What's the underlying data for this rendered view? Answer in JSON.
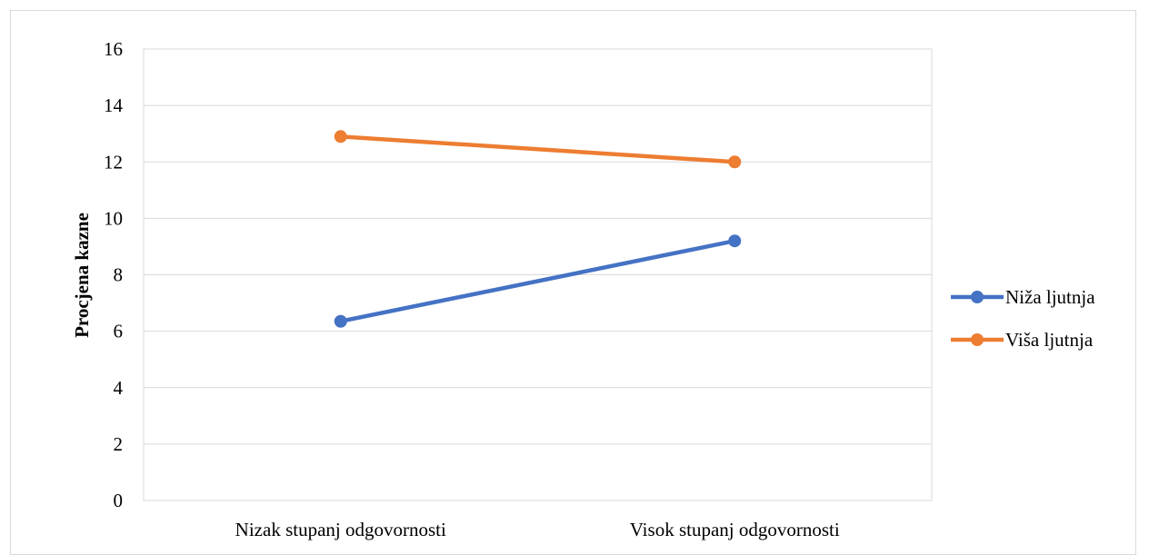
{
  "chart_data": {
    "type": "line",
    "categories": [
      "Nizak stupanj odgovornosti",
      "Visok stupanj odgovornosti"
    ],
    "series": [
      {
        "name": "Niža ljutnja",
        "values": [
          6.35,
          9.2
        ],
        "color": "#4472C4"
      },
      {
        "name": "Viša ljutnja",
        "values": [
          12.9,
          12.0
        ],
        "color": "#ED7D31"
      }
    ],
    "title": "",
    "xlabel": "",
    "ylabel": "Procjena kazne",
    "ylim": [
      0,
      16
    ],
    "yticks": [
      "0",
      "2",
      "4",
      "6",
      "8",
      "10",
      "12",
      "14",
      "16"
    ],
    "grid": true,
    "legend_position": "right"
  }
}
